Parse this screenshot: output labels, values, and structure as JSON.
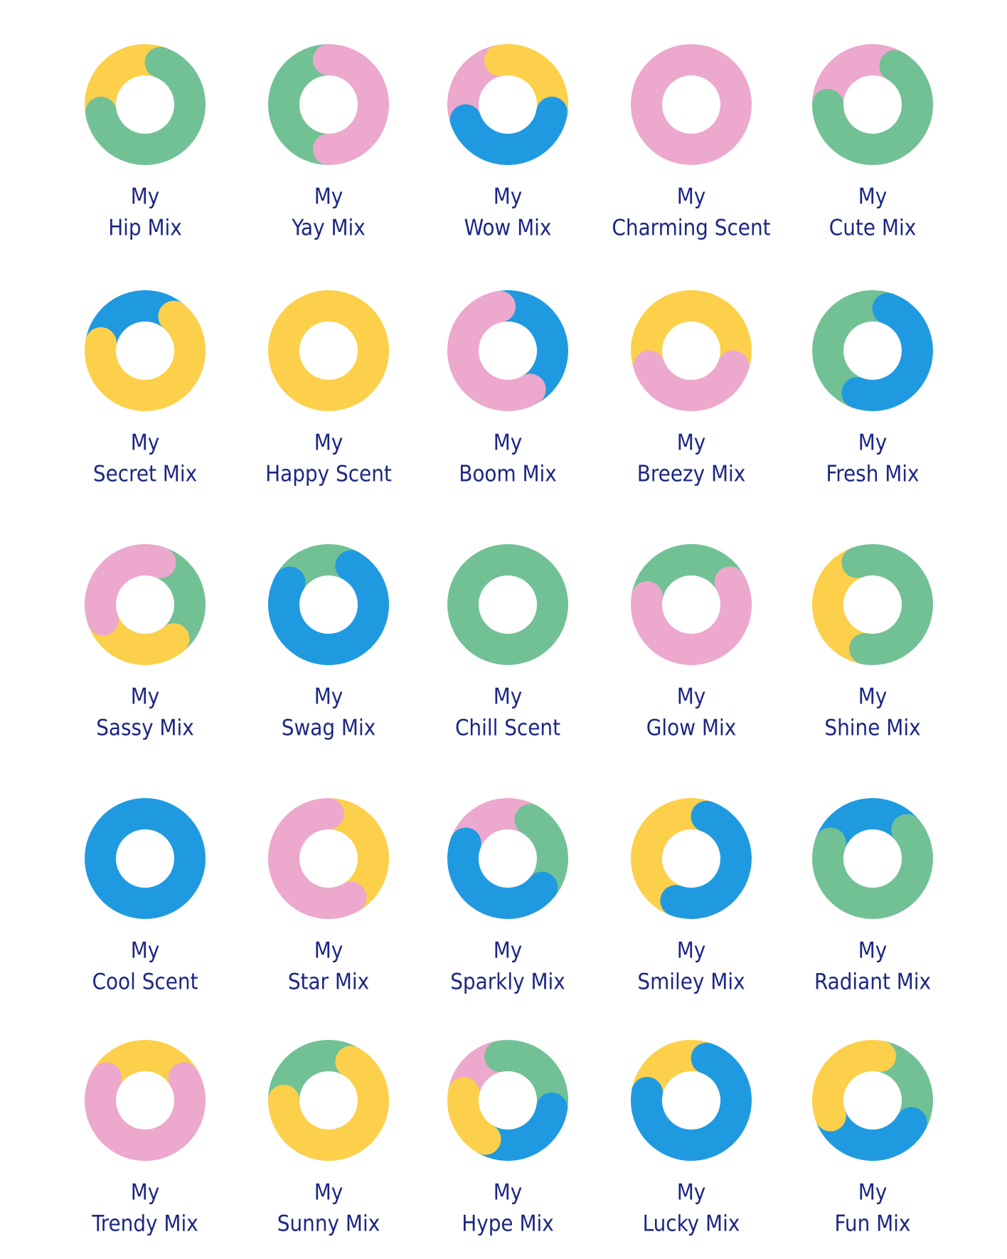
{
  "items": [
    {
      "line1": "My",
      "line2": "Hip Mix"
    },
    {
      "line1": "My",
      "line2": "Yay Mix"
    },
    {
      "line1": "My",
      "line2": "Wow Mix"
    },
    {
      "line1": "My",
      "line2": "Charming Scent"
    },
    {
      "line1": "My",
      "line2": "Cute Mix"
    },
    {
      "line1": "My",
      "line2": "Secret Mix"
    },
    {
      "line1": "My",
      "line2": "Happy Scent"
    },
    {
      "line1": "My",
      "line2": "Boom Mix"
    },
    {
      "line1": "My",
      "line2": "Breezy Mix"
    },
    {
      "line1": "My",
      "line2": "Fresh Mix"
    },
    {
      "line1": "My",
      "line2": "Sassy Mix"
    },
    {
      "line1": "My",
      "line2": "Swag Mix"
    },
    {
      "line1": "My",
      "line2": "Chill Scent"
    },
    {
      "line1": "My",
      "line2": "Glow Mix"
    },
    {
      "line1": "My",
      "line2": "Shine Mix"
    },
    {
      "line1": "My",
      "line2": "Cool Scent"
    },
    {
      "line1": "My",
      "line2": "Star Mix"
    },
    {
      "line1": "My",
      "line2": "Sparkly Mix"
    },
    {
      "line1": "My",
      "line2": "Smiley Mix"
    },
    {
      "line1": "My",
      "line2": "Radiant Mix"
    },
    {
      "line1": "My",
      "line2": "Trendy Mix"
    },
    {
      "line1": "My",
      "line2": "Sunny Mix"
    },
    {
      "line1": "My",
      "line2": "Hype Mix"
    },
    {
      "line1": "My",
      "line2": "Lucky Mix"
    },
    {
      "line1": "My",
      "line2": "Fun Mix"
    }
  ]
}
